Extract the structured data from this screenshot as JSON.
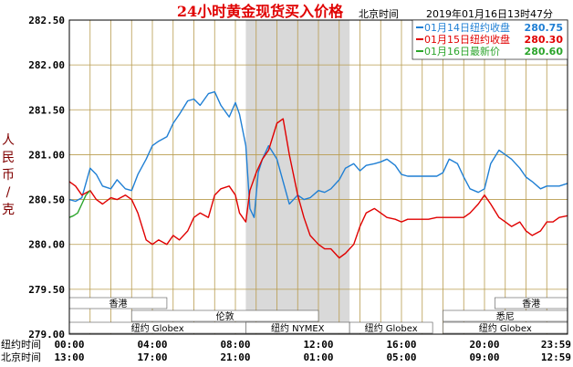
{
  "title": "24小时黄金现货买入价格",
  "timestamp_label": "北京时间",
  "timestamp": "2019年01月16日13时47分",
  "colors": {
    "title": "#e00000",
    "frame": "#000000",
    "grid": "#b89b4e",
    "shade": "#d9d9d9",
    "series_0114": "#1f7fd4",
    "series_0115": "#e00000",
    "series_0116": "#2ca52c"
  },
  "chart_data": {
    "type": "line",
    "title": "24小时黄金现货买入价格",
    "ylabel": "人民币/克",
    "ylim": [
      279.0,
      282.5
    ],
    "yticks": [
      "282.50",
      "282.00",
      "281.50",
      "281.00",
      "280.50",
      "280.00",
      "279.50",
      "279.00"
    ],
    "xlim": [
      0,
      24
    ],
    "x_axis_rows": [
      {
        "name": "纽约时间",
        "ticks": [
          "00:00",
          "04:00",
          "08:00",
          "12:00",
          "16:00",
          "20:00",
          "23:59"
        ]
      },
      {
        "name": "北京时间",
        "ticks": [
          "13:00",
          "17:00",
          "21:00",
          "01:00",
          "05:00",
          "09:00",
          "12:59"
        ]
      }
    ],
    "grid": true,
    "shaded_interval": [
      8.5,
      13.5
    ],
    "legend": [
      {
        "date": "01月14日",
        "label": "纽约收盘",
        "value": "280.75"
      },
      {
        "date": "01月15日",
        "label": "纽约收盘",
        "value": "280.30"
      },
      {
        "date": "01月16日",
        "label": "最新价",
        "value": "280.60"
      }
    ],
    "markets": [
      {
        "name": "香港",
        "row": 0,
        "start": 0,
        "end": 4.7
      },
      {
        "name": "伦敦",
        "row": 1,
        "start": 3,
        "end": 12
      },
      {
        "name": "纽约 Globex",
        "row": 2,
        "start": 0,
        "end": 8.5
      },
      {
        "name": "纽约 NYMEX",
        "row": 2,
        "start": 8.5,
        "end": 13.5
      },
      {
        "name": "纽约 Globex",
        "row": 2,
        "start": 13.5,
        "end": 17.5
      },
      {
        "name": "纽约 Globex",
        "row": 2,
        "start": 18,
        "end": 24
      },
      {
        "name": "悉尼",
        "row": 1,
        "start": 18,
        "end": 24
      },
      {
        "name": "香港",
        "row": 0,
        "start": 20.5,
        "end": 24
      }
    ],
    "series": [
      {
        "name": "01月14日",
        "color": "#1f7fd4",
        "x": [
          0,
          0.3,
          0.6,
          1.0,
          1.3,
          1.6,
          2.0,
          2.3,
          2.7,
          3.0,
          3.3,
          3.7,
          4.0,
          4.3,
          4.7,
          5.0,
          5.3,
          5.7,
          6.0,
          6.3,
          6.7,
          7.0,
          7.3,
          7.7,
          8.0,
          8.2,
          8.5,
          8.7,
          8.9,
          9.1,
          9.3,
          9.6,
          10.0,
          10.3,
          10.6,
          11.0,
          11.3,
          11.6,
          12.0,
          12.3,
          12.6,
          13.0,
          13.3,
          13.7,
          14.0,
          14.3,
          14.7,
          15.0,
          15.3,
          15.7,
          16.0,
          16.3,
          16.7,
          17.0,
          17.3,
          17.7,
          18.0,
          18.3,
          18.7,
          19.0,
          19.3,
          19.7,
          20.0,
          20.3,
          20.7,
          21.0,
          21.3,
          21.7,
          22.0,
          22.3,
          22.7,
          23.0,
          23.3,
          23.6,
          24.0
        ],
        "y": [
          280.5,
          280.48,
          280.52,
          280.85,
          280.78,
          280.65,
          280.62,
          280.72,
          280.62,
          280.6,
          280.78,
          280.95,
          281.1,
          281.15,
          281.2,
          281.35,
          281.45,
          281.6,
          281.62,
          281.55,
          281.68,
          281.7,
          281.55,
          281.42,
          281.58,
          281.45,
          281.1,
          280.4,
          280.3,
          280.8,
          280.95,
          281.1,
          280.95,
          280.7,
          280.45,
          280.55,
          280.5,
          280.52,
          280.6,
          280.58,
          280.62,
          280.72,
          280.85,
          280.9,
          280.82,
          280.88,
          280.9,
          280.92,
          280.95,
          280.88,
          280.78,
          280.76,
          280.76,
          280.76,
          280.76,
          280.76,
          280.8,
          280.95,
          280.9,
          280.75,
          280.62,
          280.58,
          280.62,
          280.9,
          281.05,
          281.0,
          280.95,
          280.85,
          280.75,
          280.7,
          280.62,
          280.65,
          280.65,
          280.65,
          280.68
        ]
      },
      {
        "name": "01月15日",
        "color": "#e00000",
        "x": [
          0,
          0.3,
          0.6,
          1.0,
          1.3,
          1.6,
          2.0,
          2.3,
          2.7,
          3.0,
          3.3,
          3.7,
          4.0,
          4.3,
          4.7,
          5.0,
          5.3,
          5.7,
          6.0,
          6.3,
          6.7,
          7.0,
          7.3,
          7.7,
          8.0,
          8.2,
          8.5,
          8.7,
          9.0,
          9.3,
          9.6,
          10.0,
          10.3,
          10.6,
          11.0,
          11.3,
          11.6,
          12.0,
          12.3,
          12.6,
          13.0,
          13.3,
          13.7,
          14.0,
          14.3,
          14.7,
          15.0,
          15.3,
          15.7,
          16.0,
          16.3,
          16.7,
          17.0,
          17.3,
          17.7,
          18.0,
          18.3,
          18.7,
          19.0,
          19.3,
          19.7,
          20.0,
          20.3,
          20.7,
          21.0,
          21.3,
          21.7,
          22.0,
          22.3,
          22.7,
          23.0,
          23.3,
          23.6,
          24.0
        ],
        "y": [
          280.7,
          280.65,
          280.55,
          280.6,
          280.5,
          280.45,
          280.52,
          280.5,
          280.55,
          280.5,
          280.35,
          280.05,
          280.0,
          280.05,
          280.0,
          280.1,
          280.05,
          280.15,
          280.3,
          280.35,
          280.3,
          280.55,
          280.62,
          280.65,
          280.55,
          280.35,
          280.25,
          280.6,
          280.8,
          280.95,
          281.05,
          281.35,
          281.4,
          281.0,
          280.55,
          280.3,
          280.1,
          280.0,
          279.95,
          279.95,
          279.85,
          279.9,
          280.0,
          280.2,
          280.35,
          280.4,
          280.35,
          280.3,
          280.28,
          280.25,
          280.28,
          280.28,
          280.28,
          280.28,
          280.3,
          280.3,
          280.3,
          280.3,
          280.3,
          280.35,
          280.45,
          280.55,
          280.45,
          280.3,
          280.25,
          280.2,
          280.25,
          280.15,
          280.1,
          280.15,
          280.25,
          280.25,
          280.3,
          280.32
        ]
      },
      {
        "name": "01月16日",
        "color": "#2ca52c",
        "x": [
          0,
          0.2,
          0.4,
          0.6,
          0.8,
          1.0
        ],
        "y": [
          280.3,
          280.32,
          280.35,
          280.45,
          280.55,
          280.6
        ]
      }
    ]
  }
}
